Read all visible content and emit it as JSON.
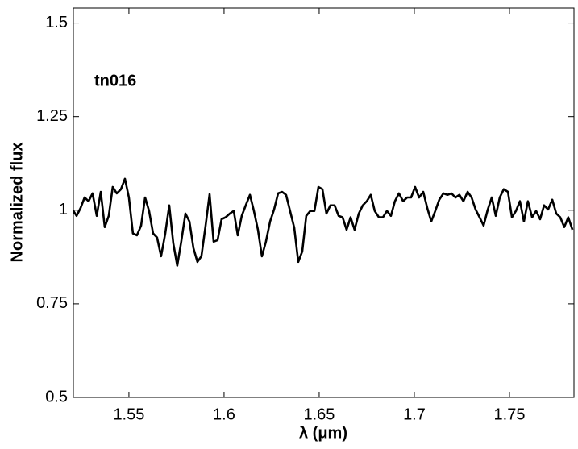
{
  "chart_data": {
    "type": "line",
    "annotation": "tn016",
    "xlabel": "λ (μm)",
    "ylabel": "Normalized flux",
    "color": "#000000",
    "xlim": [
      1.5208,
      1.7839
    ],
    "ylim": [
      0.5,
      1.54
    ],
    "xticks": [
      1.55,
      1.6,
      1.65,
      1.7,
      1.75
    ],
    "yticks": [
      0.5,
      0.75,
      1,
      1.25,
      1.5
    ],
    "x": [
      1.5203,
      1.5225,
      1.5246,
      1.5267,
      1.5288,
      1.5309,
      1.5331,
      1.5352,
      1.5373,
      1.5394,
      1.5415,
      1.5436,
      1.5458,
      1.5479,
      1.55,
      1.5521,
      1.5542,
      1.5564,
      1.5585,
      1.5606,
      1.5627,
      1.5648,
      1.5669,
      1.5691,
      1.5712,
      1.5733,
      1.5754,
      1.5775,
      1.5797,
      1.5818,
      1.5839,
      1.586,
      1.5881,
      1.5903,
      1.5924,
      1.5945,
      1.5966,
      1.5987,
      1.6008,
      1.603,
      1.6051,
      1.6072,
      1.6093,
      1.6114,
      1.6136,
      1.6157,
      1.6178,
      1.6199,
      1.622,
      1.6242,
      1.6263,
      1.6284,
      1.6305,
      1.6326,
      1.6347,
      1.6369,
      1.639,
      1.6411,
      1.6432,
      1.6453,
      1.6475,
      1.6496,
      1.6517,
      1.6538,
      1.6559,
      1.6581,
      1.6602,
      1.6623,
      1.6644,
      1.6665,
      1.6686,
      1.6708,
      1.6729,
      1.675,
      1.6771,
      1.6792,
      1.6814,
      1.6835,
      1.6856,
      1.6877,
      1.6898,
      1.6919,
      1.6941,
      1.6962,
      1.6983,
      1.7004,
      1.7025,
      1.7047,
      1.7068,
      1.7089,
      1.711,
      1.7131,
      1.7153,
      1.7174,
      1.7195,
      1.7216,
      1.7237,
      1.7258,
      1.728,
      1.7301,
      1.7322,
      1.7343,
      1.7364,
      1.7386,
      1.7407,
      1.7428,
      1.7449,
      1.747,
      1.7492,
      1.7513,
      1.7534,
      1.7555,
      1.7576,
      1.7597,
      1.7619,
      1.764,
      1.7661,
      1.7682,
      1.7703,
      1.7725,
      1.7746,
      1.7767,
      1.7788,
      1.7809,
      1.7831
    ],
    "values": [
      1.002,
      0.985,
      1.006,
      1.034,
      1.024,
      1.045,
      0.985,
      1.049,
      0.955,
      0.985,
      1.062,
      1.045,
      1.056,
      1.084,
      1.034,
      0.938,
      0.933,
      0.959,
      1.034,
      0.998,
      0.938,
      0.927,
      0.877,
      0.938,
      1.013,
      0.912,
      0.852,
      0.916,
      0.991,
      0.97,
      0.899,
      0.862,
      0.877,
      0.959,
      1.043,
      0.916,
      0.92,
      0.976,
      0.981,
      0.991,
      0.998,
      0.933,
      0.985,
      1.013,
      1.041,
      0.998,
      0.948,
      0.877,
      0.916,
      0.97,
      1.002,
      1.045,
      1.049,
      1.041,
      0.998,
      0.953,
      0.862,
      0.89,
      0.985,
      0.998,
      0.998,
      1.062,
      1.056,
      0.991,
      1.013,
      1.013,
      0.985,
      0.981,
      0.948,
      0.981,
      0.948,
      0.991,
      1.013,
      1.024,
      1.041,
      0.998,
      0.981,
      0.981,
      0.998,
      0.985,
      1.024,
      1.045,
      1.024,
      1.034,
      1.034,
      1.062,
      1.034,
      1.049,
      1.006,
      0.97,
      0.998,
      1.028,
      1.045,
      1.041,
      1.045,
      1.034,
      1.041,
      1.024,
      1.049,
      1.034,
      1.002,
      0.981,
      0.959,
      1.002,
      1.034,
      0.985,
      1.034,
      1.056,
      1.049,
      0.981,
      0.998,
      1.024,
      0.97,
      1.024,
      0.981,
      0.998,
      0.976,
      1.013,
      1.002,
      1.028,
      0.991,
      0.981,
      0.955,
      0.981,
      0.948
    ]
  }
}
